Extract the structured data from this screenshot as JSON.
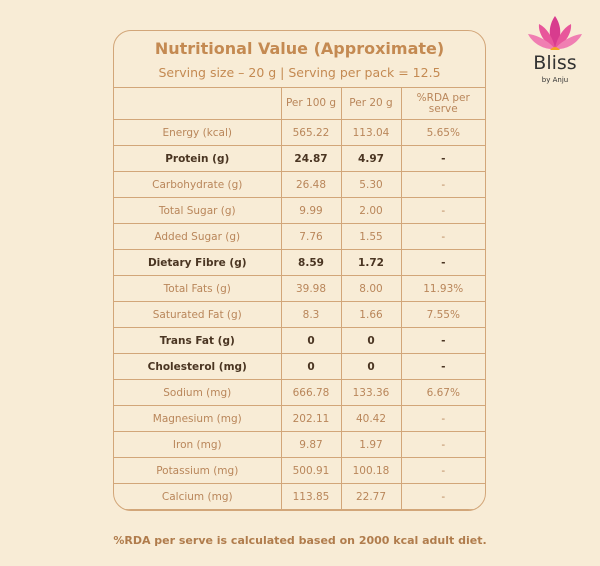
{
  "header": {
    "title": "Nutritional Value (Approximate)",
    "subtitle": "Serving size – 20 g | Serving per pack = 12.5"
  },
  "logo": {
    "brand": "Bliss",
    "tagline": "by Anju"
  },
  "table": {
    "columns": [
      "Per 100 g",
      "Per 20 g",
      "%RDA per serve"
    ],
    "rows": [
      {
        "label": "Energy (kcal)",
        "cells": [
          "565.22",
          "113.04",
          "5.65%"
        ],
        "bold": false
      },
      {
        "label": "Protein (g)",
        "cells": [
          "24.87",
          "4.97",
          "-"
        ],
        "bold": true
      },
      {
        "label": "Carbohydrate (g)",
        "cells": [
          "26.48",
          "5.30",
          "-"
        ],
        "bold": false
      },
      {
        "label": "Total Sugar (g)",
        "cells": [
          "9.99",
          "2.00",
          "-"
        ],
        "bold": false
      },
      {
        "label": "Added Sugar (g)",
        "cells": [
          "7.76",
          "1.55",
          "-"
        ],
        "bold": false
      },
      {
        "label": "Dietary Fibre (g)",
        "cells": [
          "8.59",
          "1.72",
          "-"
        ],
        "bold": true
      },
      {
        "label": "Total Fats (g)",
        "cells": [
          "39.98",
          "8.00",
          "11.93%"
        ],
        "bold": false
      },
      {
        "label": "Saturated Fat (g)",
        "cells": [
          "8.3",
          "1.66",
          "7.55%"
        ],
        "bold": false
      },
      {
        "label": "Trans Fat (g)",
        "cells": [
          "0",
          "0",
          "-"
        ],
        "bold": true
      },
      {
        "label": "Cholesterol (mg)",
        "cells": [
          "0",
          "0",
          "-"
        ],
        "bold": true
      },
      {
        "label": "Sodium (mg)",
        "cells": [
          "666.78",
          "133.36",
          "6.67%"
        ],
        "bold": false
      },
      {
        "label": "Magnesium (mg)",
        "cells": [
          "202.11",
          "40.42",
          "-"
        ],
        "bold": false
      },
      {
        "label": "Iron (mg)",
        "cells": [
          "9.87",
          "1.97",
          "-"
        ],
        "bold": false
      },
      {
        "label": "Potassium (mg)",
        "cells": [
          "500.91",
          "100.18",
          "-"
        ],
        "bold": false
      },
      {
        "label": "Calcium (mg)",
        "cells": [
          "113.85",
          "22.77",
          "-"
        ],
        "bold": false
      }
    ]
  },
  "footnote": "%RDA per serve is calculated based on 2000 kcal adult diet."
}
